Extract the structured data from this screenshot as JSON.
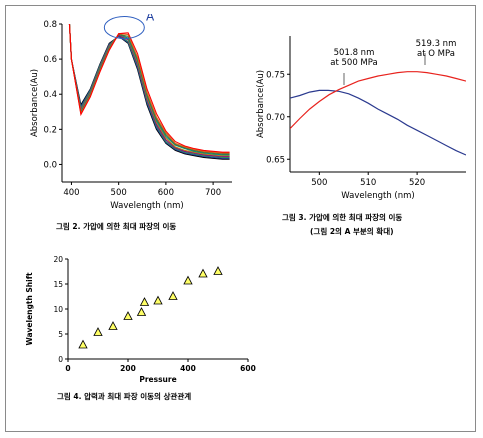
{
  "captions": {
    "fig2": "그림 2. 가압에 의한 최대 파장의 이동",
    "fig3_line1": "그림 3. 가압에 의한 최대 파장의 이동",
    "fig3_line2": "(그림 2의 A 부분의 확대)",
    "fig4": "그림 4. 압력과 최대 파장 이동의 상관관계"
  },
  "chart_data": [
    {
      "type": "line",
      "xlabel": "Wavelength (nm)",
      "ylabel": "Absorbance(Au)",
      "xlim": [
        380,
        740
      ],
      "ylim": [
        -0.1,
        0.8
      ],
      "xticks": [
        400,
        500,
        600,
        700
      ],
      "yticks": [
        0.0,
        0.2,
        0.4,
        0.6,
        0.8
      ],
      "yticklabels": [
        "0.0",
        "0.2",
        "0.4",
        "0.6",
        "0.8"
      ],
      "annotation": "A",
      "series": [
        {
          "color": "#000000",
          "peak": 501.8,
          "x": [
            395,
            400,
            420,
            440,
            460,
            480,
            500,
            520,
            540,
            560,
            580,
            600,
            620,
            640,
            660,
            680,
            700,
            720,
            735
          ],
          "y": [
            0.84,
            0.6,
            0.34,
            0.43,
            0.57,
            0.69,
            0.73,
            0.69,
            0.54,
            0.34,
            0.2,
            0.12,
            0.08,
            0.06,
            0.05,
            0.04,
            0.035,
            0.03,
            0.03
          ]
        },
        {
          "color": "#1f3f9f",
          "peak": 503.5,
          "x": [
            395,
            400,
            420,
            440,
            460,
            480,
            500,
            520,
            540,
            560,
            580,
            600,
            620,
            640,
            660,
            680,
            700,
            720,
            735
          ],
          "y": [
            0.84,
            0.6,
            0.33,
            0.425,
            0.565,
            0.685,
            0.73,
            0.695,
            0.55,
            0.35,
            0.21,
            0.125,
            0.085,
            0.065,
            0.055,
            0.045,
            0.04,
            0.035,
            0.035
          ]
        },
        {
          "color": "#2e8b57",
          "peak": 505.5,
          "x": [
            395,
            400,
            420,
            440,
            460,
            480,
            500,
            520,
            540,
            560,
            580,
            600,
            620,
            640,
            660,
            680,
            700,
            720,
            735
          ],
          "y": [
            0.84,
            0.6,
            0.32,
            0.42,
            0.56,
            0.68,
            0.735,
            0.7,
            0.56,
            0.36,
            0.22,
            0.13,
            0.09,
            0.07,
            0.06,
            0.05,
            0.045,
            0.04,
            0.04
          ]
        },
        {
          "color": "#8b008b",
          "peak": 507.5,
          "x": [
            395,
            400,
            420,
            440,
            460,
            480,
            500,
            520,
            540,
            560,
            580,
            600,
            620,
            640,
            660,
            680,
            700,
            720,
            735
          ],
          "y": [
            0.84,
            0.6,
            0.31,
            0.41,
            0.55,
            0.675,
            0.735,
            0.71,
            0.57,
            0.37,
            0.23,
            0.14,
            0.095,
            0.075,
            0.065,
            0.055,
            0.05,
            0.045,
            0.045
          ]
        },
        {
          "color": "#b8860b",
          "peak": 510,
          "x": [
            395,
            400,
            420,
            440,
            460,
            480,
            500,
            520,
            540,
            560,
            580,
            600,
            620,
            640,
            660,
            680,
            700,
            720,
            735
          ],
          "y": [
            0.84,
            0.6,
            0.305,
            0.405,
            0.545,
            0.67,
            0.74,
            0.715,
            0.58,
            0.38,
            0.24,
            0.15,
            0.1,
            0.08,
            0.07,
            0.06,
            0.055,
            0.05,
            0.05
          ]
        },
        {
          "color": "#008b8b",
          "peak": 512,
          "x": [
            395,
            400,
            420,
            440,
            460,
            480,
            500,
            520,
            540,
            560,
            580,
            600,
            620,
            640,
            660,
            680,
            700,
            720,
            735
          ],
          "y": [
            0.84,
            0.6,
            0.3,
            0.4,
            0.54,
            0.665,
            0.74,
            0.72,
            0.59,
            0.39,
            0.25,
            0.16,
            0.11,
            0.09,
            0.075,
            0.065,
            0.06,
            0.055,
            0.055
          ]
        },
        {
          "color": "#556b2f",
          "peak": 514,
          "x": [
            395,
            400,
            420,
            440,
            460,
            480,
            500,
            520,
            540,
            560,
            580,
            600,
            620,
            640,
            660,
            680,
            700,
            720,
            735
          ],
          "y": [
            0.84,
            0.6,
            0.295,
            0.395,
            0.535,
            0.66,
            0.74,
            0.73,
            0.6,
            0.4,
            0.26,
            0.17,
            0.115,
            0.095,
            0.08,
            0.07,
            0.065,
            0.06,
            0.06
          ]
        },
        {
          "color": "#d2691e",
          "peak": 516,
          "x": [
            395,
            400,
            420,
            440,
            460,
            480,
            500,
            520,
            540,
            560,
            580,
            600,
            620,
            640,
            660,
            680,
            700,
            720,
            735
          ],
          "y": [
            0.84,
            0.6,
            0.29,
            0.39,
            0.53,
            0.655,
            0.745,
            0.74,
            0.61,
            0.41,
            0.27,
            0.18,
            0.12,
            0.1,
            0.085,
            0.075,
            0.07,
            0.065,
            0.065
          ]
        },
        {
          "color": "#ff0000",
          "peak": 519.3,
          "x": [
            395,
            400,
            420,
            440,
            460,
            480,
            500,
            520,
            540,
            560,
            580,
            600,
            620,
            640,
            660,
            680,
            700,
            720,
            735
          ],
          "y": [
            0.84,
            0.6,
            0.285,
            0.385,
            0.525,
            0.65,
            0.745,
            0.75,
            0.63,
            0.43,
            0.29,
            0.19,
            0.13,
            0.105,
            0.09,
            0.08,
            0.075,
            0.07,
            0.07
          ]
        }
      ]
    },
    {
      "type": "line",
      "xlabel": "Wavelength (nm)",
      "ylabel": "Absorbance(Au)",
      "xlim": [
        494,
        530
      ],
      "ylim": [
        0.635,
        0.795
      ],
      "xticks": [
        500,
        510,
        520
      ],
      "yticks": [
        0.65,
        0.7,
        0.75
      ],
      "yticklabels": [
        "0.65",
        "0.70",
        "0.75"
      ],
      "annotations": [
        {
          "lines": [
            "501.8 nm",
            "at 500 MPa"
          ],
          "points_to": [
            501.8,
            0.731
          ]
        },
        {
          "lines": [
            "519.3 nm",
            "at O MPa"
          ],
          "points_to": [
            519.3,
            0.753
          ]
        }
      ],
      "series": [
        {
          "color": "#2b3a8f",
          "name": "500 MPa",
          "x": [
            494,
            496,
            498,
            500,
            501.8,
            504,
            506,
            508,
            510,
            512,
            514,
            516,
            518,
            520,
            522,
            524,
            526,
            528,
            530
          ],
          "y": [
            0.722,
            0.725,
            0.729,
            0.731,
            0.731,
            0.73,
            0.727,
            0.722,
            0.716,
            0.709,
            0.703,
            0.697,
            0.69,
            0.684,
            0.678,
            0.672,
            0.666,
            0.66,
            0.655
          ]
        },
        {
          "color": "#e8231e",
          "name": "0 MPa",
          "x": [
            494,
            496,
            498,
            500,
            502,
            504,
            506,
            508,
            510,
            512,
            514,
            516,
            518,
            519.3,
            520,
            522,
            524,
            526,
            528,
            530
          ],
          "y": [
            0.686,
            0.698,
            0.709,
            0.718,
            0.726,
            0.732,
            0.737,
            0.742,
            0.745,
            0.748,
            0.75,
            0.752,
            0.753,
            0.753,
            0.753,
            0.752,
            0.75,
            0.748,
            0.745,
            0.742
          ]
        }
      ]
    },
    {
      "type": "scatter",
      "xlabel": "Pressure",
      "ylabel": "Wavelength Shift",
      "xlim": [
        0,
        600
      ],
      "ylim": [
        0,
        20
      ],
      "xticks": [
        0,
        200,
        400,
        600
      ],
      "yticks": [
        0,
        5,
        10,
        15,
        20
      ],
      "marker": "triangle",
      "marker_color": "#ffff66",
      "points": [
        {
          "x": 50,
          "y": 2.8
        },
        {
          "x": 100,
          "y": 5.3
        },
        {
          "x": 150,
          "y": 6.5
        },
        {
          "x": 200,
          "y": 8.5
        },
        {
          "x": 245,
          "y": 9.3
        },
        {
          "x": 255,
          "y": 11.3
        },
        {
          "x": 300,
          "y": 11.6
        },
        {
          "x": 350,
          "y": 12.5
        },
        {
          "x": 400,
          "y": 15.6
        },
        {
          "x": 450,
          "y": 17.0
        },
        {
          "x": 500,
          "y": 17.5
        }
      ]
    }
  ]
}
